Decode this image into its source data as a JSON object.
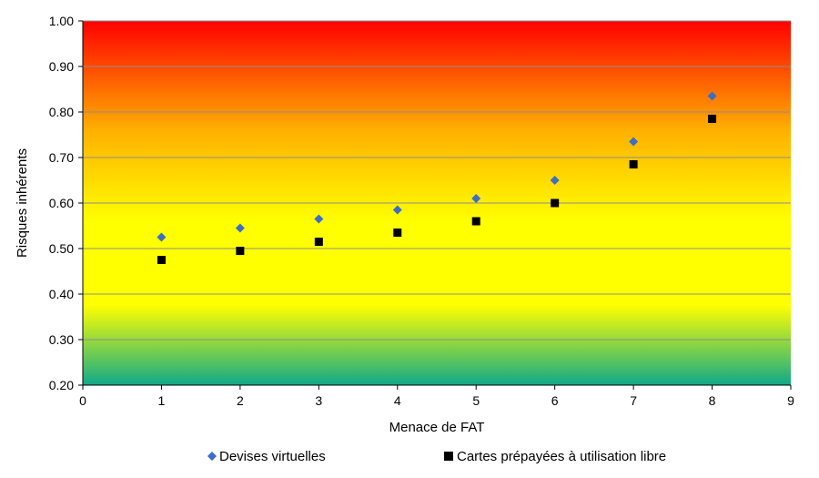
{
  "chart_data": {
    "type": "scatter",
    "xlabel": "Menace de FAT",
    "ylabel": "Risques inhérents",
    "xlim": [
      0,
      9
    ],
    "ylim": [
      0.2,
      1.0
    ],
    "x_ticks": [
      "0",
      "1",
      "2",
      "3",
      "4",
      "5",
      "6",
      "7",
      "8",
      "9"
    ],
    "y_ticks": [
      "0.20",
      "0.30",
      "0.40",
      "0.50",
      "0.60",
      "0.70",
      "0.80",
      "0.90",
      "1.00"
    ],
    "grid": true,
    "legend_position": "bottom",
    "background": "vertical gradient green-yellow-orange-red",
    "background_colors": [
      "#10a98a",
      "#ffff00",
      "#ffff00",
      "#ffb000",
      "#ff0000"
    ],
    "x": [
      1,
      2,
      3,
      4,
      5,
      6,
      7,
      8
    ],
    "series": [
      {
        "name": "Devises virtuelles",
        "marker": "diamond",
        "color": "#3a6ec8",
        "values": [
          0.525,
          0.545,
          0.565,
          0.585,
          0.61,
          0.65,
          0.735,
          0.835
        ]
      },
      {
        "name": "Cartes prépayées à utilisation libre",
        "marker": "square",
        "color": "#000000",
        "values": [
          0.475,
          0.495,
          0.515,
          0.535,
          0.56,
          0.6,
          0.685,
          0.785
        ]
      }
    ]
  }
}
